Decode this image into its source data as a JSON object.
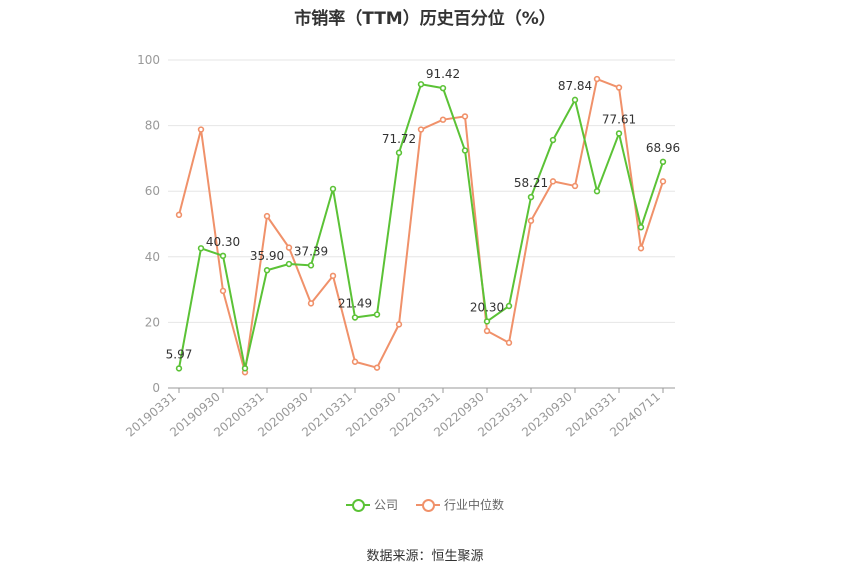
{
  "chart_data": {
    "type": "line",
    "title": "市销率（TTM）历史百分位（%）",
    "ylim": [
      0,
      100
    ],
    "yticks": [
      0,
      20,
      40,
      60,
      80,
      100
    ],
    "x_tick_labels": [
      "20190331",
      "20190930",
      "20200331",
      "20200930",
      "20210331",
      "20210930",
      "20220331",
      "20220930",
      "20230331",
      "20230930",
      "20240331",
      "20240711"
    ],
    "grid": true,
    "legend_position": "bottom",
    "series": [
      {
        "name": "公司",
        "color": "#5bc236",
        "values": [
          5.97,
          42.6,
          40.3,
          6.0,
          35.9,
          37.8,
          37.39,
          60.7,
          21.49,
          22.4,
          71.72,
          92.6,
          91.42,
          72.4,
          20.3,
          25.0,
          58.21,
          75.6,
          87.84,
          60.0,
          77.61,
          49.0,
          68.96
        ],
        "labels": [
          "5.97",
          "",
          "40.30",
          "",
          "35.90",
          "",
          "37.39",
          "",
          "21.49",
          "",
          "71.72",
          "",
          "91.42",
          "",
          "20.30",
          "",
          "58.21",
          "",
          "87.84",
          "",
          "77.61",
          "",
          "68.96"
        ]
      },
      {
        "name": "行业中位数",
        "color": "#f0916a",
        "values": [
          52.8,
          78.8,
          29.6,
          4.8,
          52.4,
          42.8,
          25.8,
          34.2,
          8.0,
          6.2,
          19.4,
          78.8,
          81.8,
          82.8,
          17.4,
          13.8,
          51.0,
          63.0,
          61.6,
          94.2,
          91.6,
          42.6,
          63.0
        ],
        "labels": []
      }
    ]
  },
  "legend": {
    "items": [
      {
        "label": "公司",
        "color": "#5bc236"
      },
      {
        "label": "行业中位数",
        "color": "#f0916a"
      }
    ]
  },
  "footer": {
    "source": "数据来源：恒生聚源"
  }
}
